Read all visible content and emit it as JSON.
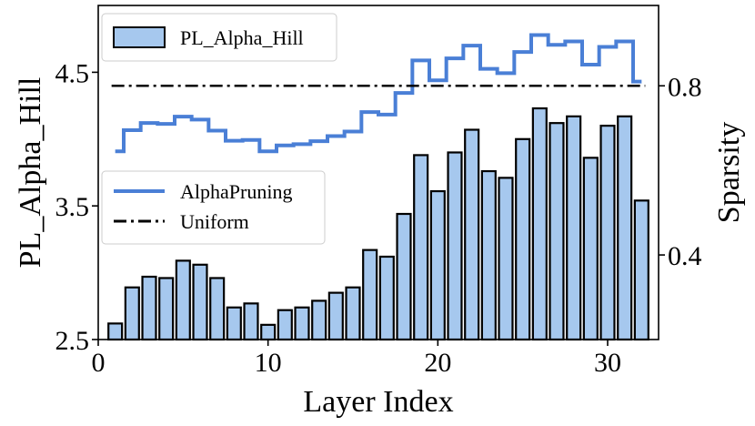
{
  "chart_data": {
    "type": "bar+line",
    "xlabel": "Layer Index",
    "ylabel_left": "PL_Alpha_Hill",
    "ylabel_right": "Sparsity",
    "xlim": [
      0,
      33
    ],
    "ylim_left": [
      2.5,
      5.0
    ],
    "ylim_right": [
      0.2,
      0.99
    ],
    "x_ticks": [
      0,
      10,
      20,
      30
    ],
    "x_tick_labels": [
      "0",
      "10",
      "20",
      "30"
    ],
    "y_left_ticks": [
      2.5,
      3.5,
      4.5
    ],
    "y_left_tick_labels": [
      "2.5",
      "3.5",
      "4.5"
    ],
    "y_right_ticks": [
      0.4,
      0.8
    ],
    "y_right_tick_labels": [
      "0.4",
      "0.8"
    ],
    "bar_series": {
      "name": "PL_Alpha_Hill",
      "color": "#a6c8ee",
      "edge_color": "#000000",
      "layers": [
        1,
        2,
        3,
        4,
        5,
        6,
        7,
        8,
        9,
        10,
        11,
        12,
        13,
        14,
        15,
        16,
        17,
        18,
        19,
        20,
        21,
        22,
        23,
        24,
        25,
        26,
        27,
        28,
        29,
        30,
        31,
        32
      ],
      "values": [
        2.62,
        2.89,
        2.97,
        2.96,
        3.09,
        3.06,
        2.96,
        2.74,
        2.77,
        2.61,
        2.72,
        2.74,
        2.79,
        2.85,
        2.89,
        3.17,
        3.12,
        3.44,
        3.88,
        3.61,
        3.9,
        4.07,
        3.76,
        3.71,
        4.0,
        4.23,
        4.12,
        4.17,
        3.86,
        4.1,
        4.17,
        3.54
      ]
    },
    "line_series": [
      {
        "name": "AlphaPruning",
        "color": "#4a7fd6",
        "style": "steps-mid",
        "axis": "right",
        "layers": [
          1,
          2,
          3,
          4,
          5,
          6,
          7,
          8,
          9,
          10,
          11,
          12,
          13,
          14,
          15,
          16,
          17,
          18,
          19,
          20,
          21,
          22,
          23,
          24,
          25,
          26,
          27,
          28,
          29,
          30,
          31,
          32
        ],
        "values": [
          0.645,
          0.695,
          0.712,
          0.71,
          0.727,
          0.72,
          0.694,
          0.67,
          0.672,
          0.645,
          0.659,
          0.662,
          0.669,
          0.681,
          0.692,
          0.738,
          0.732,
          0.783,
          0.86,
          0.813,
          0.865,
          0.895,
          0.84,
          0.83,
          0.88,
          0.92,
          0.897,
          0.905,
          0.85,
          0.892,
          0.905,
          0.81
        ]
      },
      {
        "name": "Uniform",
        "color": "#000000",
        "style": "dash-dot",
        "axis": "right",
        "value": 0.8
      }
    ],
    "legend_upper": {
      "placement": "top-left",
      "entries": [
        "PL_Alpha_Hill"
      ]
    },
    "legend_lower": {
      "placement": "center-left",
      "entries": [
        "AlphaPruning",
        "Uniform"
      ]
    }
  }
}
